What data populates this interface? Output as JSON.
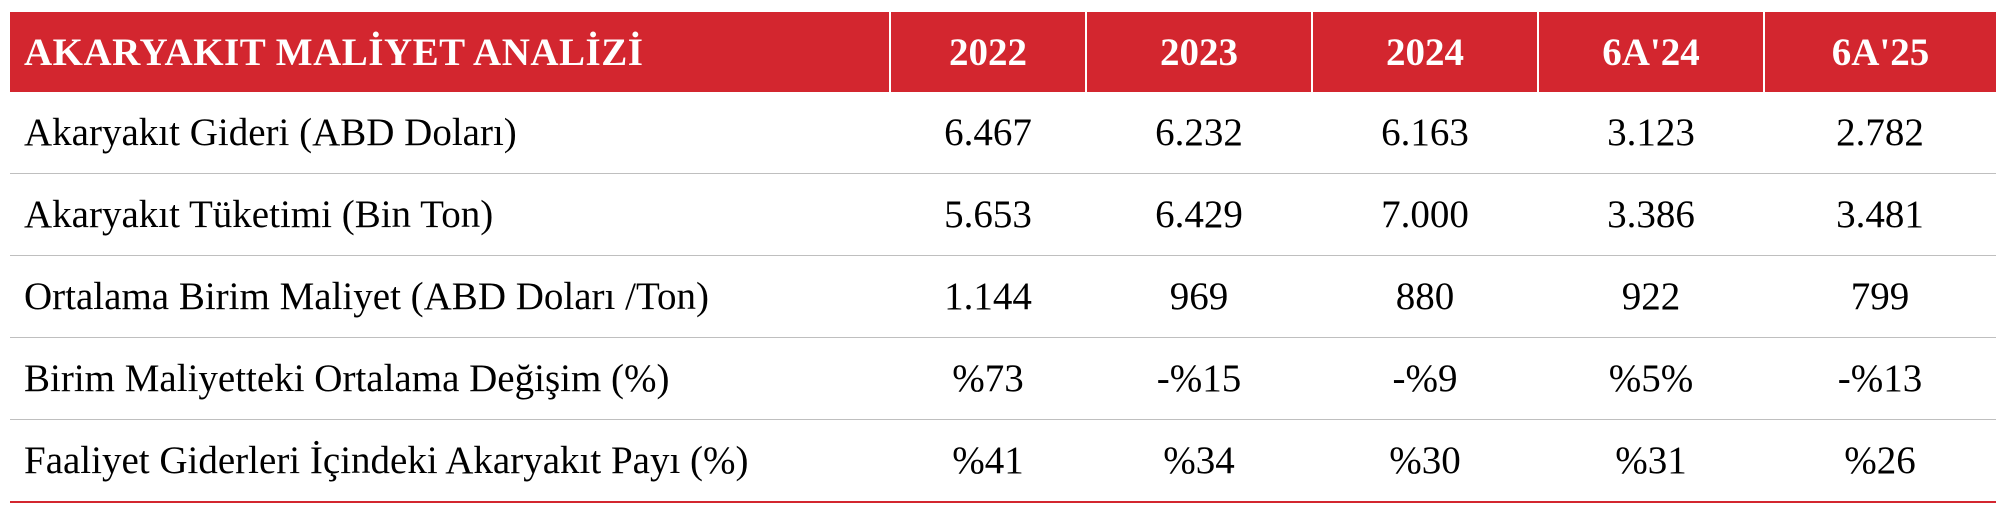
{
  "table": {
    "title": "AKARYAKIT MALİYET ANALİZİ",
    "columns": [
      "2022",
      "2023",
      "2024",
      "6A'24",
      "6A'25"
    ],
    "rows": [
      {
        "label": "Akaryakıt Gideri (ABD Doları)",
        "values": [
          "6.467",
          "6.232",
          "6.163",
          "3.123",
          "2.782"
        ]
      },
      {
        "label": "Akaryakıt Tüketimi (Bin Ton)",
        "values": [
          "5.653",
          "6.429",
          "7.000",
          "3.386",
          "3.481"
        ]
      },
      {
        "label": "Ortalama Birim Maliyet (ABD Doları /Ton)",
        "values": [
          "1.144",
          "969",
          "880",
          "922",
          "799"
        ]
      },
      {
        "label": "Birim Maliyetteki Ortalama Değişim (%)",
        "values": [
          "%73",
          "-%15",
          "-%9",
          "%5%",
          "-%13"
        ]
      },
      {
        "label": "Faaliyet Giderleri İçindeki Akaryakıt Payı (%)",
        "values": [
          "%41",
          "%34",
          "%30",
          "%31",
          "%26"
        ]
      }
    ],
    "colors": {
      "header_bg": "#d3262f",
      "header_text": "#ffffff",
      "divider": "#bfbfbf",
      "bottom_rule": "#d3262f"
    }
  }
}
